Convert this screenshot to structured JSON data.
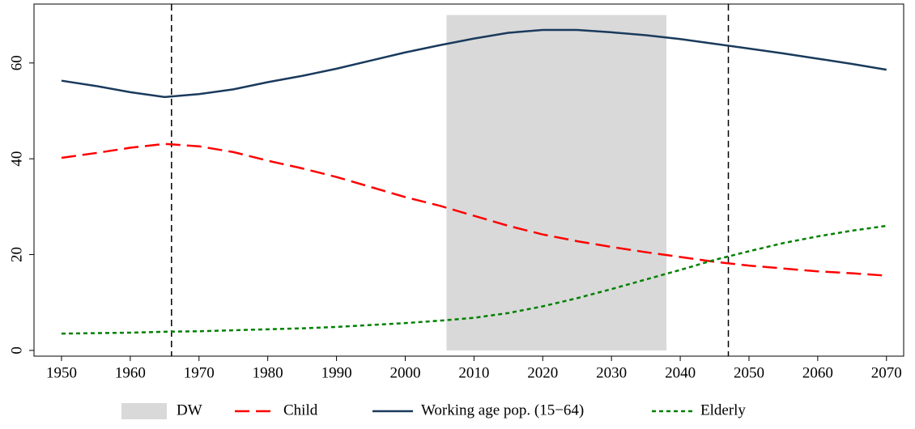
{
  "chart_data": {
    "type": "line",
    "x": [
      1950,
      1955,
      1960,
      1965,
      1970,
      1975,
      1980,
      1985,
      1990,
      1995,
      2000,
      2005,
      2010,
      2015,
      2020,
      2025,
      2030,
      2035,
      2040,
      2045,
      2050,
      2055,
      2060,
      2065,
      2070
    ],
    "series": [
      {
        "name": "Child",
        "color": "#ff0000",
        "dash": "18,8",
        "values": [
          40.2,
          41.2,
          42.3,
          43.1,
          42.6,
          41.4,
          39.6,
          38.0,
          36.2,
          34.1,
          32.0,
          30.2,
          28.1,
          26.0,
          24.2,
          22.8,
          21.6,
          20.5,
          19.5,
          18.5,
          17.7,
          17.1,
          16.5,
          16.1,
          15.6
        ]
      },
      {
        "name": "Working age pop. (15−64)",
        "color": "#1a3a5c",
        "dash": "none",
        "values": [
          56.3,
          55.2,
          53.9,
          52.9,
          53.5,
          54.5,
          56.0,
          57.3,
          58.8,
          60.5,
          62.2,
          63.7,
          65.1,
          66.3,
          66.9,
          66.9,
          66.4,
          65.8,
          65.0,
          64.0,
          63.0,
          62.0,
          60.9,
          59.8,
          58.6
        ]
      },
      {
        "name": "Elderly",
        "color": "#008000",
        "dash": "5,4",
        "values": [
          3.5,
          3.6,
          3.7,
          3.9,
          4.0,
          4.2,
          4.4,
          4.6,
          4.9,
          5.3,
          5.7,
          6.2,
          6.8,
          7.8,
          9.2,
          10.9,
          12.8,
          14.8,
          16.8,
          18.9,
          20.7,
          22.4,
          23.8,
          25.0,
          26.0
        ]
      }
    ],
    "shaded_region": {
      "name": "DW",
      "color": "#d9d9d9",
      "x": [
        2006,
        2038
      ],
      "y": [
        0,
        70
      ]
    },
    "vlines": [
      1966,
      2047
    ],
    "xlim": [
      1946,
      2072.5
    ],
    "ylim": [
      -1.2,
      72.3
    ],
    "xticks": [
      1950,
      1960,
      1970,
      1980,
      1990,
      2000,
      2010,
      2020,
      2030,
      2040,
      2050,
      2060,
      2070
    ],
    "yticks": [
      0,
      20,
      40,
      60
    ],
    "legend": "bottom"
  }
}
